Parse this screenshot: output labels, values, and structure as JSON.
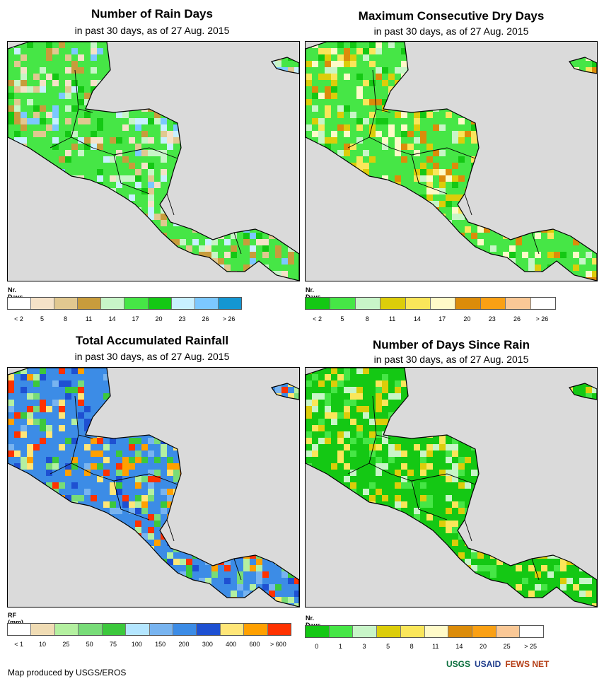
{
  "panels": [
    {
      "id": "rain-days",
      "title": "Number of Rain Days",
      "subtitle": "in past 30 days, as of 27 Aug. 2015",
      "legend": {
        "label": "Nr. Days",
        "colors": [
          "#ffffff",
          "#f5e2c8",
          "#e1c890",
          "#c89c3c",
          "#c8f5c8",
          "#46e646",
          "#14c814",
          "#c8f0ff",
          "#7cc8ff",
          "#1496d2"
        ],
        "ticks": [
          "< 2",
          "5",
          "8",
          "11",
          "14",
          "17",
          "20",
          "23",
          "26",
          "> 26"
        ]
      },
      "palette": [
        "#46e646",
        "#14c814",
        "#c8f5c8",
        "#c89c3c",
        "#e1c890",
        "#f5e2c8",
        "#7cc8ff",
        "#c8f0ff"
      ]
    },
    {
      "id": "max-dry-days",
      "title": "Maximum Consecutive Dry Days",
      "subtitle": "in past 30 days, as of 27 Aug. 2015",
      "legend": {
        "label": "Nr. Days",
        "colors": [
          "#14c814",
          "#46e646",
          "#c8f5c8",
          "#dccd0a",
          "#fae65a",
          "#fffac8",
          "#dc8c0a",
          "#faa014",
          "#fac896",
          "#ffffff"
        ],
        "ticks": [
          "< 2",
          "5",
          "8",
          "11",
          "14",
          "17",
          "20",
          "23",
          "26",
          "> 26"
        ]
      },
      "palette": [
        "#46e646",
        "#14c814",
        "#c8f5c8",
        "#fae65a",
        "#dccd0a",
        "#fffac8",
        "#dc8c0a"
      ]
    },
    {
      "id": "total-rainfall",
      "title": "Total Accumulated Rainfall",
      "subtitle": "in past 30 days, as of 27 Aug. 2015",
      "legend": {
        "label": "RF (mm)",
        "colors": [
          "#ffffff",
          "#f0dcb4",
          "#b4f0a0",
          "#78dc78",
          "#3cc83c",
          "#b4e6ff",
          "#78b4f0",
          "#3c8ce6",
          "#1e50d2",
          "#ffe678",
          "#ffa000",
          "#ff3200"
        ],
        "ticks": [
          "< 1",
          "10",
          "25",
          "50",
          "75",
          "100",
          "150",
          "200",
          "300",
          "400",
          "600",
          "> 600"
        ]
      },
      "palette": [
        "#3c8ce6",
        "#1e50d2",
        "#78b4f0",
        "#3cc83c",
        "#78dc78",
        "#b4f0a0",
        "#ffe678",
        "#ffa000",
        "#ff3200"
      ]
    },
    {
      "id": "days-since-rain",
      "title": "Number of Days Since Rain",
      "subtitle": "in past 30 days, as of 27 Aug. 2015",
      "legend": {
        "label": "Nr. Days",
        "colors": [
          "#14c814",
          "#46e646",
          "#c8f5c8",
          "#dccd0a",
          "#fae65a",
          "#fffac8",
          "#dc8c0a",
          "#faa014",
          "#fac896",
          "#ffffff"
        ],
        "ticks": [
          "0",
          "1",
          "3",
          "5",
          "8",
          "11",
          "14",
          "20",
          "25",
          "> 25"
        ]
      },
      "palette": [
        "#14c814",
        "#46e646",
        "#c8f5c8",
        "#dccd0a",
        "#fae65a"
      ]
    }
  ],
  "footer": "Map produced by USGS/EROS",
  "logos": [
    "USGS",
    "USAID",
    "FEWS NET"
  ]
}
